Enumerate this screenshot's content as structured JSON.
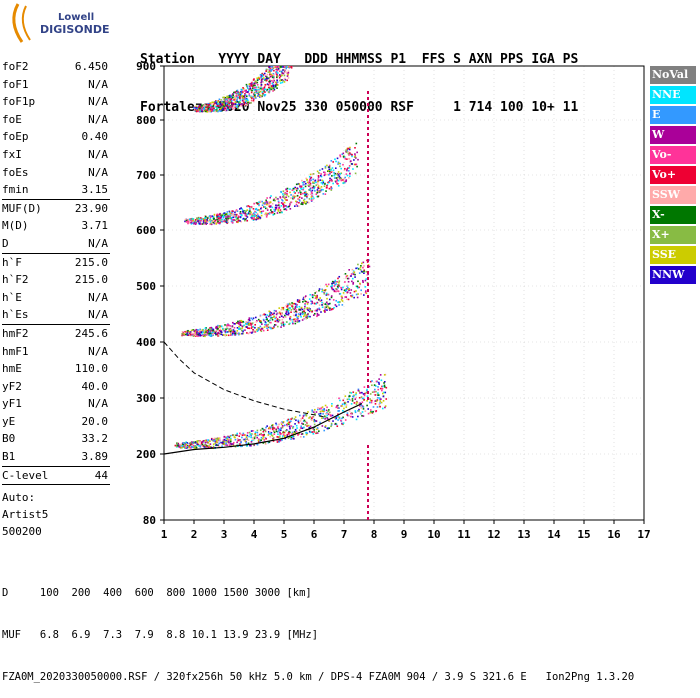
{
  "logo": {
    "line1": "Lowell",
    "line2": "DIGISONDE"
  },
  "header": {
    "labels": "Station   YYYY DAY   DDD HHMMSS P1  FFS S AXN PPS IGA PS",
    "values": "Fortaleza 2020 Nov25 330 050000 RSF     1 714 100 10+ 11"
  },
  "params_group1": [
    {
      "name": "foF2",
      "value": "6.450"
    },
    {
      "name": "foF1",
      "value": "N/A"
    },
    {
      "name": "foF1p",
      "value": "N/A"
    },
    {
      "name": "foE",
      "value": "N/A"
    },
    {
      "name": "foEp",
      "value": "0.40"
    },
    {
      "name": "fxI",
      "value": "N/A"
    },
    {
      "name": "foEs",
      "value": "N/A"
    },
    {
      "name": "fmin",
      "value": "3.15"
    }
  ],
  "params_group2": [
    {
      "name": "MUF(D)",
      "value": "23.90"
    },
    {
      "name": "M(D)",
      "value": "3.71"
    },
    {
      "name": "D",
      "value": "N/A"
    }
  ],
  "params_group3": [
    {
      "name": "h`F",
      "value": "215.0"
    },
    {
      "name": "h`F2",
      "value": "215.0"
    },
    {
      "name": "h`E",
      "value": "N/A"
    },
    {
      "name": "h`Es",
      "value": "N/A"
    }
  ],
  "params_group4": [
    {
      "name": "hmF2",
      "value": "245.6"
    },
    {
      "name": "hmF1",
      "value": "N/A"
    },
    {
      "name": "hmE",
      "value": "110.0"
    },
    {
      "name": "yF2",
      "value": "40.0"
    },
    {
      "name": "yF1",
      "value": "N/A"
    },
    {
      "name": "yE",
      "value": "20.0"
    },
    {
      "name": "B0",
      "value": "33.2"
    },
    {
      "name": "B1",
      "value": "3.89"
    }
  ],
  "params_group5": [
    {
      "name": "C-level",
      "value": "44"
    }
  ],
  "auto": {
    "line1": "Auto:",
    "line2": "Artist5",
    "line3": "500200"
  },
  "legend": [
    {
      "label": "NoVal",
      "color": "#808080"
    },
    {
      "label": "NNE",
      "color": "#00e5ff"
    },
    {
      "label": "E",
      "color": "#3399ff"
    },
    {
      "label": "W",
      "color": "#aa0099"
    },
    {
      "label": "Vo-",
      "color": "#ff3399"
    },
    {
      "label": "Vo+",
      "color": "#ee0033"
    },
    {
      "label": "SSW",
      "color": "#ffaaaa"
    },
    {
      "label": "X-",
      "color": "#007700"
    },
    {
      "label": "X+",
      "color": "#88bb44"
    },
    {
      "label": "SSE",
      "color": "#cccc00"
    },
    {
      "label": "NNW",
      "color": "#2200cc"
    }
  ],
  "footer": {
    "line1": "D     100  200  400  600  800 1000 1500 3000 [km]",
    "line2": "MUF   6.8  6.9  7.3  7.9  8.8 10.1 13.9 23.9 [MHz]",
    "line3": "FZA0M_2020330050000.RSF / 320fx256h 50 kHz 5.0 km / DPS-4 FZA0M 904 / 3.9 S 321.6 E   Ion2Png 1.3.20"
  },
  "chart_data": {
    "type": "scatter",
    "x_ticks": [
      "1",
      "2",
      "3",
      "4",
      "5",
      "6",
      "7",
      "8",
      "9",
      "10",
      "11",
      "12",
      "13",
      "14",
      "15",
      "16",
      "17"
    ],
    "y_ticks": [
      "80",
      "200",
      "300",
      "400",
      "500",
      "600",
      "700",
      "800",
      "900"
    ],
    "xlim": [
      1,
      17
    ],
    "ylim": [
      80,
      900
    ],
    "traces": [
      {
        "kind": "band",
        "h_start": 215,
        "h_end": 305,
        "f_start": 1.4,
        "f_end": 8.4
      },
      {
        "kind": "band",
        "h_start": 415,
        "h_end": 510,
        "f_start": 1.6,
        "f_end": 7.8
      },
      {
        "kind": "band",
        "h_start": 615,
        "h_end": 720,
        "f_start": 1.7,
        "f_end": 7.4
      },
      {
        "kind": "band",
        "h_start": 820,
        "h_end": 900,
        "f_start": 2.0,
        "f_end": 5.2
      }
    ],
    "profile_solid": [
      [
        1.0,
        200
      ],
      [
        2,
        208
      ],
      [
        3,
        212
      ],
      [
        4,
        218
      ],
      [
        5,
        228
      ],
      [
        6,
        248
      ],
      [
        7,
        275
      ],
      [
        7.6,
        290
      ]
    ],
    "profile_dashed": [
      [
        1.0,
        400
      ],
      [
        1.5,
        370
      ],
      [
        2,
        345
      ],
      [
        3,
        315
      ],
      [
        4,
        295
      ],
      [
        5,
        280
      ],
      [
        6,
        270
      ],
      [
        6.45,
        265
      ]
    ],
    "vertical_marker_f": 7.8
  }
}
